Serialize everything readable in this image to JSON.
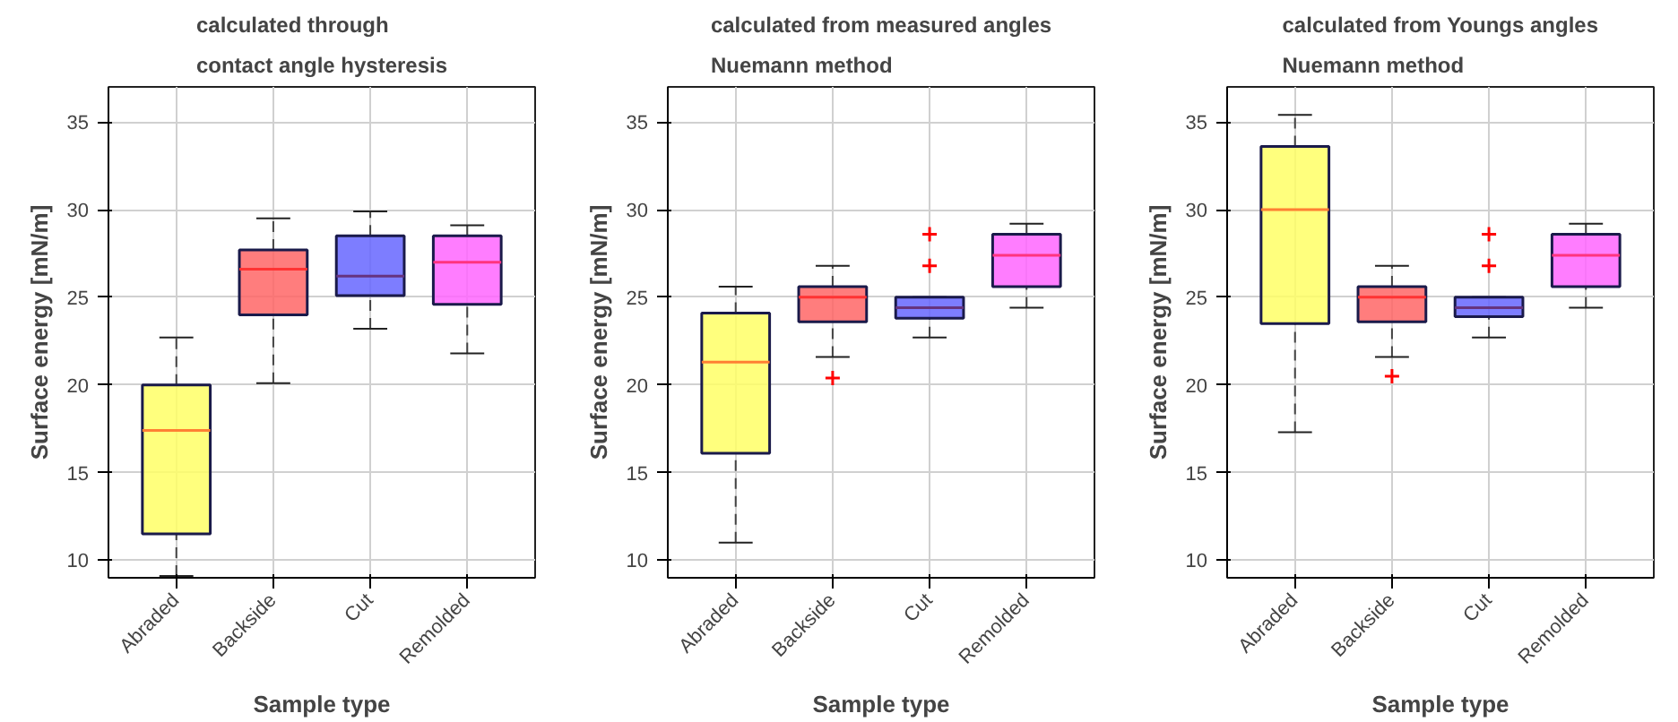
{
  "chart_data": [
    {
      "type": "box",
      "title": "calculated through\ncontact angle hysteresis",
      "xlabel": "Sample type",
      "ylabel": "Surface energy [mN/m]",
      "categories": [
        "Abraded",
        "Backside",
        "Cut",
        "Remolded"
      ],
      "colors": [
        "#ffff66",
        "#ff6666",
        "#6666ff",
        "#ff66ff"
      ],
      "ylim": [
        9,
        37
      ],
      "yticks": [
        10,
        15,
        20,
        25,
        30,
        35
      ],
      "grid": true,
      "boxes": [
        {
          "low": 9.1,
          "q1": 11.5,
          "median": 17.4,
          "q3": 20,
          "high": 22.7
        },
        {
          "low": 20.1,
          "q1": 24,
          "median": 26.6,
          "q3": 27.7,
          "high": 29.5
        },
        {
          "low": 23.2,
          "q1": 25.1,
          "median": 26.2,
          "q3": 28.5,
          "high": 29.9
        },
        {
          "low": 21.8,
          "q1": 24.6,
          "median": 27,
          "q3": 28.5,
          "high": 29.1
        }
      ]
    },
    {
      "type": "box",
      "title": "calculated from measured angles\nNuemann method",
      "xlabel": "Sample type",
      "ylabel": "Surface energy [mN/m]",
      "categories": [
        "Abraded",
        "Backside",
        "Cut",
        "Remolded"
      ],
      "colors": [
        "#ffff66",
        "#ff6666",
        "#6666ff",
        "#ff66ff"
      ],
      "ylim": [
        9,
        37
      ],
      "yticks": [
        10,
        15,
        20,
        25,
        30,
        35
      ],
      "grid": true,
      "boxes": [
        {
          "low": 11,
          "q1": 16.1,
          "median": 21.3,
          "q3": 24.1,
          "high": 25.6
        },
        {
          "low": 21.6,
          "q1": 23.6,
          "median": 25,
          "q3": 25.6,
          "high": 26.8,
          "outliers": [
            20.4
          ]
        },
        {
          "low": 22.7,
          "q1": 23.8,
          "median": 24.4,
          "q3": 25,
          "high": 25,
          "outliers": [
            26.8,
            28.6
          ]
        },
        {
          "low": 24.4,
          "q1": 25.6,
          "median": 27.4,
          "q3": 28.6,
          "high": 29.2
        }
      ]
    },
    {
      "type": "box",
      "title": "calculated from Youngs angles\nNuemann method",
      "xlabel": "Sample type",
      "ylabel": "Surface energy [mN/m]",
      "categories": [
        "Abraded",
        "Backside",
        "Cut",
        "Remolded"
      ],
      "colors": [
        "#ffff66",
        "#ff6666",
        "#6666ff",
        "#ff66ff"
      ],
      "ylim": [
        9,
        37
      ],
      "yticks": [
        10,
        15,
        20,
        25,
        30,
        35
      ],
      "grid": true,
      "boxes": [
        {
          "low": 17.3,
          "q1": 23.5,
          "median": 30,
          "q3": 33.6,
          "high": 35.4
        },
        {
          "low": 21.6,
          "q1": 23.6,
          "median": 25,
          "q3": 25.6,
          "high": 26.8,
          "outliers": [
            20.5
          ]
        },
        {
          "low": 22.7,
          "q1": 23.9,
          "median": 24.4,
          "q3": 25,
          "high": 25,
          "outliers": [
            26.8,
            28.6
          ]
        },
        {
          "low": 24.4,
          "q1": 25.6,
          "median": 27.4,
          "q3": 28.6,
          "high": 29.2
        }
      ]
    }
  ]
}
